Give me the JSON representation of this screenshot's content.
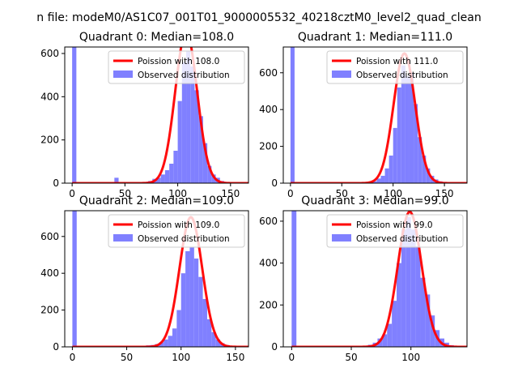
{
  "figure": {
    "suptitle": "n file: modeM0/AS1C07_001T01_9000005532_40218cztM0_level2_quad_clean"
  },
  "colors": {
    "hist": "#8080ff",
    "poisson": "#ff0000",
    "axes": "#000000"
  },
  "chart_data": [
    {
      "type": "bar",
      "title": "Quadrant 0: Median=108.0",
      "median": 108,
      "xlim": [
        -7,
        167
      ],
      "ylim": [
        0,
        630
      ],
      "xticks": [
        0,
        50,
        100,
        150
      ],
      "yticks": [
        0,
        200,
        400,
        600
      ],
      "legend_position": "top-right",
      "series": [
        {
          "name": "Poission with 108.0",
          "kind": "line",
          "lambda": 108,
          "peak": 700
        },
        {
          "name": "Observed distribution",
          "kind": "histogram",
          "bin_width": 4,
          "bins": [
            [
              0,
              630
            ],
            [
              40,
              25
            ],
            [
              68,
              5
            ],
            [
              72,
              10
            ],
            [
              76,
              20
            ],
            [
              80,
              25
            ],
            [
              84,
              40
            ],
            [
              88,
              60
            ],
            [
              92,
              90
            ],
            [
              96,
              150
            ],
            [
              100,
              380
            ],
            [
              104,
              560
            ],
            [
              108,
              610
            ],
            [
              112,
              540
            ],
            [
              116,
              430
            ],
            [
              120,
              310
            ],
            [
              124,
              185
            ],
            [
              128,
              80
            ],
            [
              132,
              40
            ],
            [
              136,
              25
            ],
            [
              140,
              10
            ],
            [
              144,
              5
            ]
          ]
        }
      ]
    },
    {
      "type": "bar",
      "title": "Quadrant 1: Median=111.0",
      "median": 111,
      "xlim": [
        -7,
        172
      ],
      "ylim": [
        0,
        740
      ],
      "xticks": [
        0,
        50,
        100,
        150
      ],
      "yticks": [
        0,
        200,
        400,
        600
      ],
      "legend_position": "top-right",
      "series": [
        {
          "name": "Poission with 111.0",
          "kind": "line",
          "lambda": 111,
          "peak": 705
        },
        {
          "name": "Observed distribution",
          "kind": "histogram",
          "bin_width": 4,
          "bins": [
            [
              0,
              740
            ],
            [
              76,
              5
            ],
            [
              80,
              10
            ],
            [
              84,
              25
            ],
            [
              88,
              40
            ],
            [
              92,
              80
            ],
            [
              96,
              150
            ],
            [
              100,
              300
            ],
            [
              104,
              520
            ],
            [
              108,
              640
            ],
            [
              112,
              580
            ],
            [
              116,
              600
            ],
            [
              120,
              430
            ],
            [
              124,
              250
            ],
            [
              128,
              150
            ],
            [
              132,
              80
            ],
            [
              136,
              40
            ],
            [
              140,
              20
            ],
            [
              144,
              10
            ],
            [
              148,
              5
            ]
          ]
        }
      ]
    },
    {
      "type": "bar",
      "title": "Quadrant 2: Median=109.0",
      "median": 109,
      "xlim": [
        -7,
        162
      ],
      "ylim": [
        0,
        740
      ],
      "xticks": [
        0,
        50,
        100,
        150
      ],
      "yticks": [
        0,
        200,
        400,
        600
      ],
      "legend_position": "top-right",
      "series": [
        {
          "name": "Poission with 109.0",
          "kind": "line",
          "lambda": 109,
          "peak": 705
        },
        {
          "name": "Observed distribution",
          "kind": "histogram",
          "bin_width": 4,
          "bins": [
            [
              0,
              740
            ],
            [
              64,
              5
            ],
            [
              68,
              8
            ],
            [
              72,
              10
            ],
            [
              76,
              15
            ],
            [
              80,
              25
            ],
            [
              84,
              40
            ],
            [
              88,
              60
            ],
            [
              92,
              100
            ],
            [
              96,
              200
            ],
            [
              100,
              400
            ],
            [
              104,
              520
            ],
            [
              108,
              540
            ],
            [
              112,
              480
            ],
            [
              116,
              380
            ],
            [
              120,
              260
            ],
            [
              124,
              150
            ],
            [
              128,
              80
            ],
            [
              132,
              40
            ],
            [
              136,
              20
            ],
            [
              140,
              10
            ],
            [
              144,
              5
            ]
          ]
        }
      ]
    },
    {
      "type": "bar",
      "title": "Quadrant 3: Median=99.0",
      "median": 99,
      "xlim": [
        -7,
        147
      ],
      "ylim": [
        0,
        650
      ],
      "xticks": [
        0,
        50,
        100
      ],
      "yticks": [
        0,
        200,
        400,
        600
      ],
      "legend_position": "top-right",
      "series": [
        {
          "name": "Poission with 99.0",
          "kind": "line",
          "lambda": 99,
          "peak": 645
        },
        {
          "name": "Observed distribution",
          "kind": "histogram",
          "bin_width": 4,
          "bins": [
            [
              0,
              650
            ],
            [
              60,
              5
            ],
            [
              64,
              10
            ],
            [
              68,
              20
            ],
            [
              72,
              40
            ],
            [
              76,
              60
            ],
            [
              80,
              110
            ],
            [
              84,
              220
            ],
            [
              88,
              400
            ],
            [
              92,
              560
            ],
            [
              96,
              620
            ],
            [
              100,
              560
            ],
            [
              104,
              480
            ],
            [
              108,
              330
            ],
            [
              112,
              250
            ],
            [
              116,
              150
            ],
            [
              120,
              80
            ],
            [
              124,
              40
            ],
            [
              128,
              20
            ],
            [
              132,
              8
            ]
          ]
        }
      ]
    }
  ]
}
